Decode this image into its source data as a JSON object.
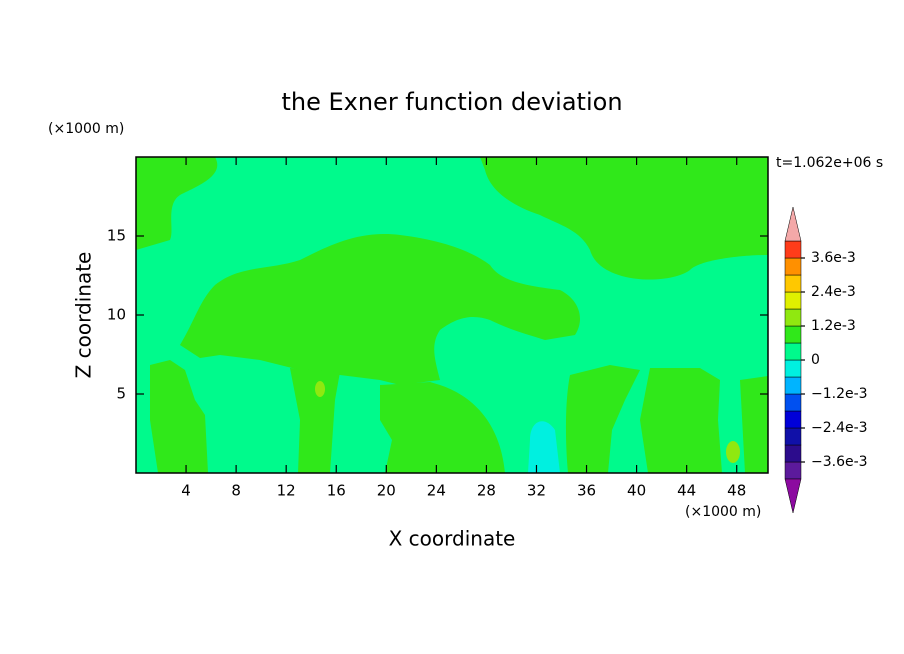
{
  "chart_data": {
    "type": "contour",
    "title": "the Exner function deviation",
    "xlabel": "X coordinate",
    "ylabel": "Z coordinate",
    "x_unit": "(×1000 m)",
    "y_unit": "(×1000 m)",
    "time_label": "t=1.062e+06 s",
    "xlim": [
      0,
      50.5
    ],
    "ylim": [
      0,
      20
    ],
    "xticks": [
      4,
      8,
      12,
      16,
      20,
      24,
      28,
      32,
      36,
      40,
      44,
      48
    ],
    "yticks": [
      5,
      10,
      15
    ],
    "colorbar": {
      "levels": [
        -0.0042,
        -0.0036,
        -0.003,
        -0.0024,
        -0.0018,
        -0.0012,
        -0.0006,
        0,
        0.0006,
        0.0012,
        0.0018,
        0.0024,
        0.003,
        0.0036,
        0.0042
      ],
      "colors": [
        "#5c1a9c",
        "#2c0c8c",
        "#1010a8",
        "#0000d8",
        "#0050f0",
        "#00b4ff",
        "#00f0e0",
        "#00fa8c",
        "#30e81a",
        "#90e810",
        "#e0f000",
        "#ffc800",
        "#ff9000",
        "#ff3c1a"
      ],
      "under_color": "#8c0aa0",
      "over_color": "#f4a8a8",
      "ticks": [
        {
          "value": 0.0036,
          "label": "3.6e-3"
        },
        {
          "value": 0.0024,
          "label": "2.4e-3"
        },
        {
          "value": 0.0012,
          "label": "1.2e-3"
        },
        0,
        {
          "value": -0.0012,
          "label": "−1.2e-3"
        },
        {
          "value": -0.0024,
          "label": "−2.4e-3"
        },
        {
          "value": -0.0036,
          "label": "−3.6e-3"
        }
      ]
    }
  }
}
